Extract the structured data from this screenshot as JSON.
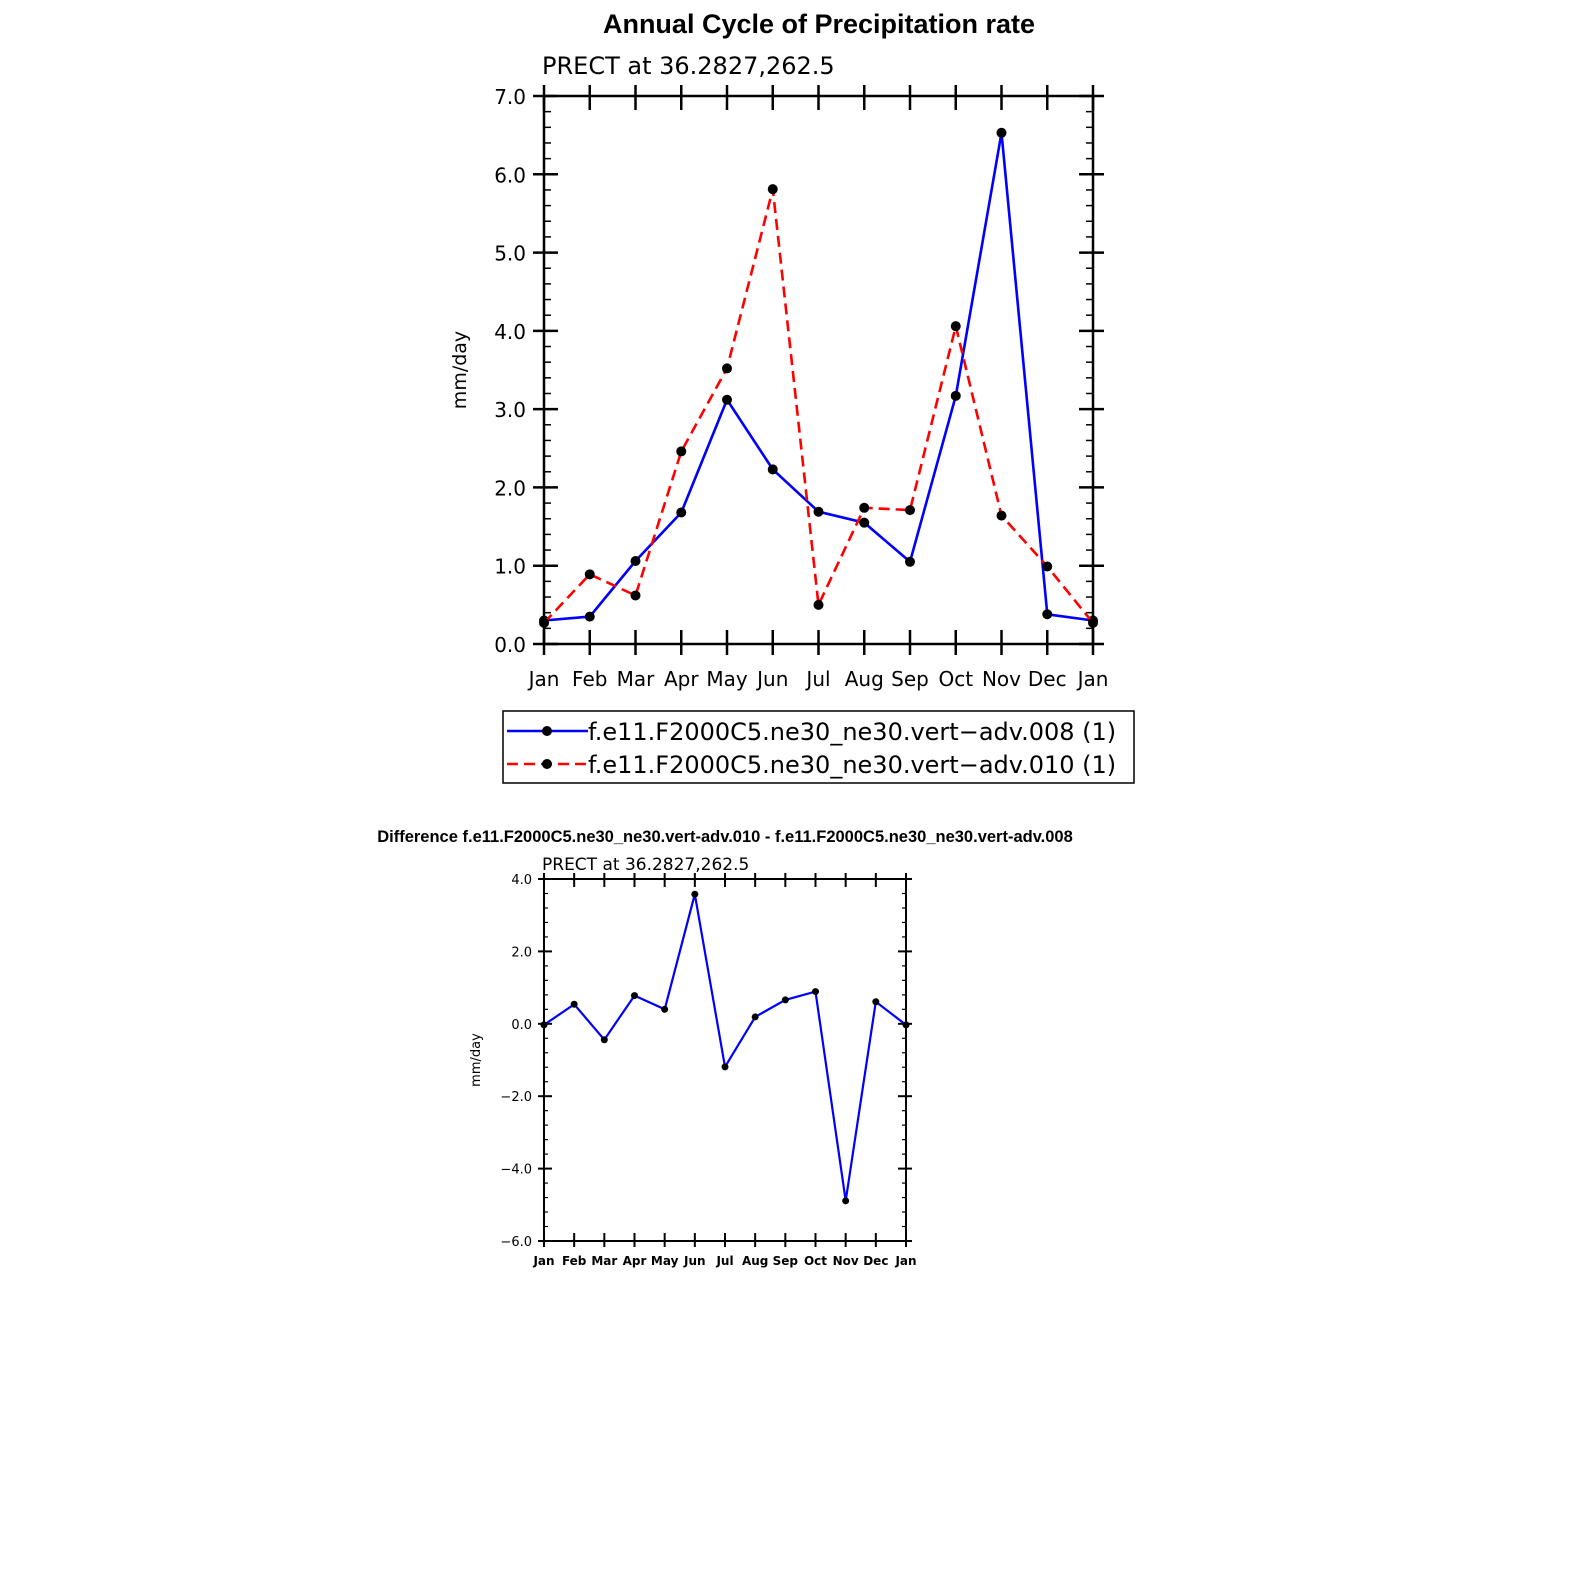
{
  "chart_data": [
    {
      "type": "line",
      "title": "Annual Cycle of Precipitation rate",
      "subtitle": "PRECT at 36.2827,262.5",
      "xlabel": "",
      "ylabel": "mm/day",
      "ylim": [
        0,
        7
      ],
      "grid": false,
      "legend_position": "bottom",
      "categories": [
        "Jan",
        "Feb",
        "Mar",
        "Apr",
        "May",
        "Jun",
        "Jul",
        "Aug",
        "Sep",
        "Oct",
        "Nov",
        "Dec",
        "Jan"
      ],
      "yticks": [
        "0.0",
        "1.0",
        "2.0",
        "3.0",
        "4.0",
        "5.0",
        "6.0",
        "7.0"
      ],
      "series": [
        {
          "name": "f.e11.F2000C5.ne30_ne30.vert−adv.008 (1)",
          "color": "#0000ff",
          "dash": "solid",
          "values": [
            0.3,
            0.35,
            1.06,
            1.68,
            3.12,
            2.23,
            1.69,
            1.55,
            1.05,
            3.17,
            6.53,
            0.38,
            0.3
          ]
        },
        {
          "name": "f.e11.F2000C5.ne30_ne30.vert−adv.010 (1)",
          "color": "#ff0000",
          "dash": "dashed",
          "values": [
            0.27,
            0.89,
            0.62,
            2.46,
            3.52,
            5.81,
            0.5,
            1.74,
            1.71,
            4.06,
            1.64,
            0.99,
            0.27
          ]
        }
      ]
    },
    {
      "type": "line",
      "title": "Difference f.e11.F2000C5.ne30_ne30.vert-adv.010 - f.e11.F2000C5.ne30_ne30.vert-adv.008",
      "subtitle": "PRECT at 36.2827,262.5",
      "xlabel": "",
      "ylabel": "mm/day",
      "ylim": [
        -6,
        4
      ],
      "grid": false,
      "categories": [
        "Jan",
        "Feb",
        "Mar",
        "Apr",
        "May",
        "Jun",
        "Jul",
        "Aug",
        "Sep",
        "Oct",
        "Nov",
        "Dec",
        "Jan"
      ],
      "yticks": [
        "−6.0",
        "−4.0",
        "−2.0",
        "0.0",
        "2.0",
        "4.0"
      ],
      "series": [
        {
          "name": "Difference",
          "color": "#0000ff",
          "dash": "solid",
          "values": [
            -0.03,
            0.54,
            -0.44,
            0.78,
            0.4,
            3.58,
            -1.19,
            0.19,
            0.66,
            0.89,
            -4.89,
            0.61,
            -0.03
          ]
        }
      ]
    }
  ]
}
